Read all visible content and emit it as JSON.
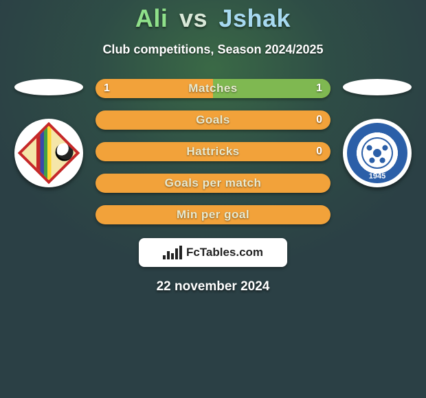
{
  "title": {
    "player1": "Ali",
    "vs": "vs",
    "player2": "Jshak",
    "p1_color": "#8fe08a",
    "p2_color": "#a7d9f0",
    "vs_color": "#d9e8d8"
  },
  "subtitle": "Club competitions, Season 2024/2025",
  "colors": {
    "player1": "#f2a23a",
    "player2": "#7fb851",
    "bar_label": "#e8ead0"
  },
  "club_right_year": "1945",
  "stats": [
    {
      "label": "Matches",
      "left_value": "1",
      "right_value": "1",
      "left_pct": 50,
      "right_pct": 50,
      "show_left": true,
      "show_right": true
    },
    {
      "label": "Goals",
      "left_value": "",
      "right_value": "0",
      "left_pct": 100,
      "right_pct": 0,
      "show_left": false,
      "show_right": true
    },
    {
      "label": "Hattricks",
      "left_value": "",
      "right_value": "0",
      "left_pct": 100,
      "right_pct": 0,
      "show_left": false,
      "show_right": true
    },
    {
      "label": "Goals per match",
      "left_value": "",
      "right_value": "",
      "left_pct": 100,
      "right_pct": 0,
      "show_left": false,
      "show_right": false
    },
    {
      "label": "Min per goal",
      "left_value": "",
      "right_value": "",
      "left_pct": 100,
      "right_pct": 0,
      "show_left": false,
      "show_right": false
    }
  ],
  "brand": "FcTables.com",
  "date": "22 november 2024"
}
